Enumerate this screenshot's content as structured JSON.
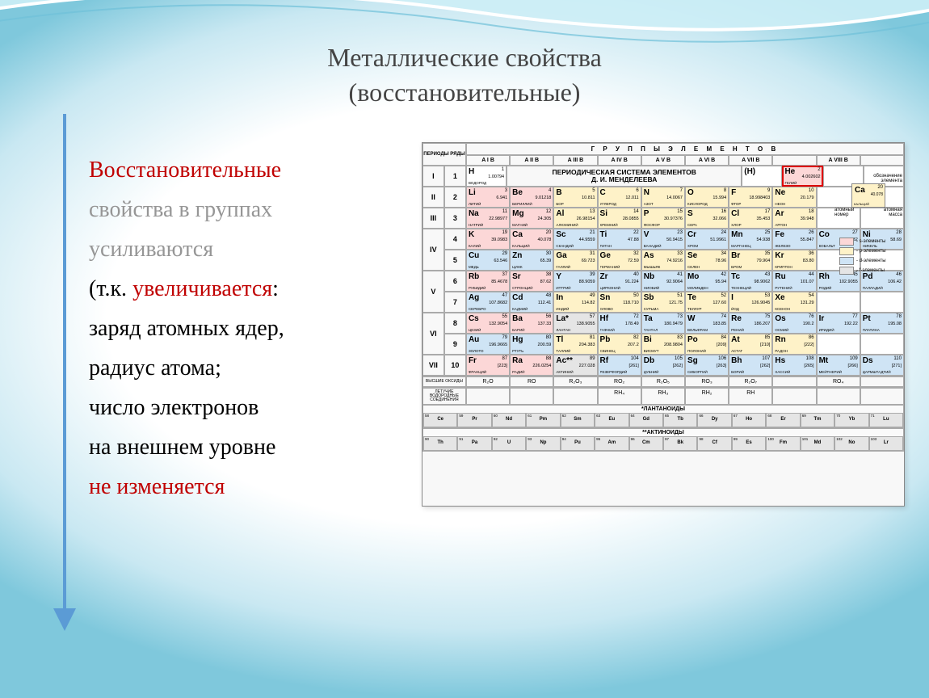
{
  "title": {
    "line1": "Металлические свойства",
    "line2": "(восстановительные)"
  },
  "paragraph": {
    "p1": "Восстановительные",
    "p2_gray": " свойства в группах",
    "p3_gray": " усиливаются",
    "p4_black": "(т.к. ",
    "p4_red": "увеличивается",
    "p4_black2": ":",
    "p5": "заряд атомных ядер,",
    "p6": "радиус атома;",
    "p7": "число электронов",
    "p8": "на внешнем уровне",
    "p9_red": "не изменяется"
  },
  "arrow_color": "#5b9bd5",
  "colors": {
    "s": "#fcd7d7",
    "p": "#fef2c8",
    "d": "#cfe4f5",
    "f": "#e5e5e5",
    "title_text": "#444444",
    "body_text": "#000000",
    "red": "#c00000",
    "gray": "#969696",
    "border": "#aaaaaa"
  },
  "periodic_table": {
    "header_groups": "Г Р У П П Ы   Э Л Е М Е Н Т О В",
    "corner1": "ПЕРИОДЫ",
    "corner2": "РЯДЫ",
    "group_labels": [
      "A I B",
      "A II B",
      "A III B",
      "A IV B",
      "A V B",
      "A VI B",
      "A VII B",
      "",
      "A VIII B",
      ""
    ],
    "inner_title1": "ПЕРИОДИЧЕСКАЯ СИСТЕМА ЭЛЕМЕНТОВ",
    "inner_title2": "Д. И. МЕНДЕЛЕЕВА",
    "periods": [
      "I",
      "II",
      "III",
      "IV",
      "IV",
      "V",
      "V",
      "VI",
      "VI",
      "VII"
    ],
    "row_nums": [
      "1",
      "2",
      "3",
      "4",
      "5",
      "6",
      "7",
      "8",
      "9",
      "10"
    ],
    "period_heights": [
      26,
      26,
      26,
      26,
      26,
      26,
      26,
      26,
      26,
      26
    ],
    "rows": [
      [
        {
          "s": "H",
          "n": "1",
          "m": "1.00794",
          "nm": "ВОДОРОД",
          "c": "c-w"
        },
        "TITLE",
        "TITLE",
        "TITLE",
        "TITLE",
        "TITLE",
        {
          "s": "(H)",
          "n": "",
          "m": "",
          "nm": "",
          "c": "c-w"
        },
        {
          "s": "He",
          "n": "2",
          "m": "4.002602",
          "nm": "ГЕЛИЙ",
          "c": "c-s",
          "hl": true
        },
        "CALLOUT",
        "CALLOUT"
      ],
      [
        {
          "s": "Li",
          "n": "3",
          "m": "6.941",
          "nm": "ЛИТИЙ",
          "c": "c-s"
        },
        {
          "s": "Be",
          "n": "4",
          "m": "9.01218",
          "nm": "БЕРИЛЛИЙ",
          "c": "c-s"
        },
        {
          "s": "B",
          "n": "5",
          "m": "10.811",
          "nm": "БОР",
          "c": "c-p"
        },
        {
          "s": "C",
          "n": "6",
          "m": "12.011",
          "nm": "УГЛЕРОД",
          "c": "c-p"
        },
        {
          "s": "N",
          "n": "7",
          "m": "14.0067",
          "nm": "АЗОТ",
          "c": "c-p"
        },
        {
          "s": "O",
          "n": "8",
          "m": "15.994",
          "nm": "КИСЛОРОД",
          "c": "c-p"
        },
        {
          "s": "F",
          "n": "9",
          "m": "18.998403",
          "nm": "ФТОР",
          "c": "c-p"
        },
        {
          "s": "Ne",
          "n": "10",
          "m": "20.179",
          "nm": "НЕОН",
          "c": "c-p"
        },
        "CALLOUT",
        "CALLOUT"
      ],
      [
        {
          "s": "Na",
          "n": "11",
          "m": "22.98977",
          "nm": "НАТРИЙ",
          "c": "c-s"
        },
        {
          "s": "Mg",
          "n": "12",
          "m": "24.305",
          "nm": "МАГНИЙ",
          "c": "c-s"
        },
        {
          "s": "Al",
          "n": "13",
          "m": "26.98154",
          "nm": "АЛЮМИНИЙ",
          "c": "c-p"
        },
        {
          "s": "Si",
          "n": "14",
          "m": "28.0855",
          "nm": "КРЕМНИЙ",
          "c": "c-p"
        },
        {
          "s": "P",
          "n": "15",
          "m": "30.97376",
          "nm": "ФОСФОР",
          "c": "c-p"
        },
        {
          "s": "S",
          "n": "16",
          "m": "32.066",
          "nm": "СЕРА",
          "c": "c-p"
        },
        {
          "s": "Cl",
          "n": "17",
          "m": "35.453",
          "nm": "ХЛОР",
          "c": "c-p"
        },
        {
          "s": "Ar",
          "n": "18",
          "m": "39.948",
          "nm": "АРГОН",
          "c": "c-p"
        },
        "CALLOUT",
        "CALLOUT"
      ],
      [
        {
          "s": "K",
          "n": "19",
          "m": "39.0983",
          "nm": "КАЛИЙ",
          "c": "c-s"
        },
        {
          "s": "Ca",
          "n": "20",
          "m": "40.078",
          "nm": "КАЛЬЦИЙ",
          "c": "c-s"
        },
        {
          "s": "Sc",
          "n": "21",
          "m": "44.9559",
          "nm": "СКАНДИЙ",
          "c": "c-d"
        },
        {
          "s": "Ti",
          "n": "22",
          "m": "47.88",
          "nm": "ТИТАН",
          "c": "c-d"
        },
        {
          "s": "V",
          "n": "23",
          "m": "50.9415",
          "nm": "ВАНАДИЙ",
          "c": "c-d"
        },
        {
          "s": "Cr",
          "n": "24",
          "m": "51.9961",
          "nm": "ХРОМ",
          "c": "c-d"
        },
        {
          "s": "Mn",
          "n": "25",
          "m": "54.938",
          "nm": "МАРГАНЕЦ",
          "c": "c-d"
        },
        {
          "s": "Fe",
          "n": "26",
          "m": "55.847",
          "nm": "ЖЕЛЕЗО",
          "c": "c-d"
        },
        {
          "s": "Co",
          "n": "27",
          "m": "58.9332",
          "nm": "КОБАЛЬТ",
          "c": "c-d"
        },
        {
          "s": "Ni",
          "n": "28",
          "m": "58.69",
          "nm": "НИКЕЛЬ",
          "c": "c-d"
        }
      ],
      [
        {
          "s": "Cu",
          "n": "29",
          "m": "63.546",
          "nm": "МЕДЬ",
          "c": "c-d"
        },
        {
          "s": "Zn",
          "n": "30",
          "m": "65.39",
          "nm": "ЦИНК",
          "c": "c-d"
        },
        {
          "s": "Ga",
          "n": "31",
          "m": "69.723",
          "nm": "ГАЛЛИЙ",
          "c": "c-p"
        },
        {
          "s": "Ge",
          "n": "32",
          "m": "72.59",
          "nm": "ГЕРМАНИЙ",
          "c": "c-p"
        },
        {
          "s": "As",
          "n": "33",
          "m": "74.9216",
          "nm": "МЫШЬЯК",
          "c": "c-p"
        },
        {
          "s": "Se",
          "n": "34",
          "m": "78.96",
          "nm": "СЕЛЕН",
          "c": "c-p"
        },
        {
          "s": "Br",
          "n": "35",
          "m": "79.904",
          "nm": "БРОМ",
          "c": "c-p"
        },
        {
          "s": "Kr",
          "n": "36",
          "m": "83.80",
          "nm": "КРИПТОН",
          "c": "c-p"
        },
        "LEGEND",
        "LEGEND"
      ],
      [
        {
          "s": "Rb",
          "n": "37",
          "m": "85.4678",
          "nm": "РУБИДИЙ",
          "c": "c-s"
        },
        {
          "s": "Sr",
          "n": "38",
          "m": "87.62",
          "nm": "СТРОНЦИЙ",
          "c": "c-s"
        },
        {
          "s": "Y",
          "n": "39",
          "m": "88.9059",
          "nm": "ИТТРИЙ",
          "c": "c-d"
        },
        {
          "s": "Zr",
          "n": "40",
          "m": "91.224",
          "nm": "ЦИРКОНИЙ",
          "c": "c-d"
        },
        {
          "s": "Nb",
          "n": "41",
          "m": "92.9064",
          "nm": "НИОБИЙ",
          "c": "c-d"
        },
        {
          "s": "Mo",
          "n": "42",
          "m": "95.94",
          "nm": "МОЛИБДЕН",
          "c": "c-d"
        },
        {
          "s": "Tc",
          "n": "43",
          "m": "98.9062",
          "nm": "ТЕХНЕЦИЙ",
          "c": "c-d"
        },
        {
          "s": "Ru",
          "n": "44",
          "m": "101.07",
          "nm": "РУТЕНИЙ",
          "c": "c-d"
        },
        {
          "s": "Rh",
          "n": "45",
          "m": "102.9055",
          "nm": "РОДИЙ",
          "c": "c-d"
        },
        {
          "s": "Pd",
          "n": "46",
          "m": "106.42",
          "nm": "ПАЛЛАДИЙ",
          "c": "c-d"
        }
      ],
      [
        {
          "s": "Ag",
          "n": "47",
          "m": "107.8682",
          "nm": "СЕРЕБРО",
          "c": "c-d"
        },
        {
          "s": "Cd",
          "n": "48",
          "m": "112.41",
          "nm": "КАДМИЙ",
          "c": "c-d"
        },
        {
          "s": "In",
          "n": "49",
          "m": "114.82",
          "nm": "ИНДИЙ",
          "c": "c-p"
        },
        {
          "s": "Sn",
          "n": "50",
          "m": "118.710",
          "nm": "ОЛОВО",
          "c": "c-p"
        },
        {
          "s": "Sb",
          "n": "51",
          "m": "121.75",
          "nm": "СУРЬМА",
          "c": "c-p"
        },
        {
          "s": "Te",
          "n": "52",
          "m": "127.60",
          "nm": "ТЕЛЛУР",
          "c": "c-p"
        },
        {
          "s": "I",
          "n": "53",
          "m": "126.9045",
          "nm": "ЙОД",
          "c": "c-p"
        },
        {
          "s": "Xe",
          "n": "54",
          "m": "131.29",
          "nm": "КСЕНОН",
          "c": "c-p"
        },
        "LEGEND",
        "LEGEND"
      ],
      [
        {
          "s": "Cs",
          "n": "55",
          "m": "132.9054",
          "nm": "ЦЕЗИЙ",
          "c": "c-s"
        },
        {
          "s": "Ba",
          "n": "56",
          "m": "137.33",
          "nm": "БАРИЙ",
          "c": "c-s"
        },
        {
          "s": "La*",
          "n": "57",
          "m": "138.9055",
          "nm": "ЛАНТАН",
          "c": "c-f"
        },
        {
          "s": "Hf",
          "n": "72",
          "m": "178.49",
          "nm": "ГАФНИЙ",
          "c": "c-d"
        },
        {
          "s": "Ta",
          "n": "73",
          "m": "180.9479",
          "nm": "ТАНТАЛ",
          "c": "c-d"
        },
        {
          "s": "W",
          "n": "74",
          "m": "183.85",
          "nm": "ВОЛЬФРАМ",
          "c": "c-d"
        },
        {
          "s": "Re",
          "n": "75",
          "m": "186.207",
          "nm": "РЕНИЙ",
          "c": "c-d"
        },
        {
          "s": "Os",
          "n": "76",
          "m": "190.2",
          "nm": "ОСМИЙ",
          "c": "c-d"
        },
        {
          "s": "Ir",
          "n": "77",
          "m": "192.22",
          "nm": "ИРИДИЙ",
          "c": "c-d"
        },
        {
          "s": "Pt",
          "n": "78",
          "m": "195.08",
          "nm": "ПЛАТИНА",
          "c": "c-d"
        }
      ],
      [
        {
          "s": "Au",
          "n": "79",
          "m": "196.9665",
          "nm": "ЗОЛОТО",
          "c": "c-d"
        },
        {
          "s": "Hg",
          "n": "80",
          "m": "200.59",
          "nm": "РТУТЬ",
          "c": "c-d"
        },
        {
          "s": "Tl",
          "n": "81",
          "m": "204.383",
          "nm": "ТАЛЛИЙ",
          "c": "c-p"
        },
        {
          "s": "Pb",
          "n": "82",
          "m": "207.2",
          "nm": "СВИНЕЦ",
          "c": "c-p"
        },
        {
          "s": "Bi",
          "n": "83",
          "m": "208.9804",
          "nm": "ВИСМУТ",
          "c": "c-p"
        },
        {
          "s": "Po",
          "n": "84",
          "m": "[209]",
          "nm": "ПОЛОНИЙ",
          "c": "c-p"
        },
        {
          "s": "At",
          "n": "85",
          "m": "[210]",
          "nm": "АСТАТ",
          "c": "c-p"
        },
        {
          "s": "Rn",
          "n": "86",
          "m": "[222]",
          "nm": "РАДОН",
          "c": "c-p"
        },
        "",
        ""
      ],
      [
        {
          "s": "Fr",
          "n": "87",
          "m": "[223]",
          "nm": "ФРАНЦИЙ",
          "c": "c-s"
        },
        {
          "s": "Ra",
          "n": "88",
          "m": "226.0254",
          "nm": "РАДИЙ",
          "c": "c-s"
        },
        {
          "s": "Ac**",
          "n": "89",
          "m": "227.028",
          "nm": "АКТИНИЙ",
          "c": "c-f"
        },
        {
          "s": "Rf",
          "n": "104",
          "m": "[261]",
          "nm": "РЕЗЕРФОРДИЙ",
          "c": "c-d"
        },
        {
          "s": "Db",
          "n": "105",
          "m": "[262]",
          "nm": "ДУБНИЙ",
          "c": "c-d"
        },
        {
          "s": "Sg",
          "n": "106",
          "m": "[263]",
          "nm": "СИБОРГИЙ",
          "c": "c-d"
        },
        {
          "s": "Bh",
          "n": "107",
          "m": "[262]",
          "nm": "БОРИЙ",
          "c": "c-d"
        },
        {
          "s": "Hs",
          "n": "108",
          "m": "[265]",
          "nm": "ХАССИЙ",
          "c": "c-d"
        },
        {
          "s": "Mt",
          "n": "109",
          "m": "[266]",
          "nm": "МЕЙТНЕРИЙ",
          "c": "c-d"
        },
        {
          "s": "Ds",
          "n": "110",
          "m": "[271]",
          "nm": "ДАРМШТАДТИЙ",
          "c": "c-d"
        }
      ]
    ],
    "callout": {
      "label1": "обозначение",
      "label2": "элемента",
      "label3": "атомный",
      "label4": "номер",
      "label5": "атомная",
      "label6": "масса",
      "sym": "Ca",
      "num": "20",
      "mass": "40.078",
      "name": "КАЛЬЦИЙ"
    },
    "legend": {
      "items": [
        {
          "c": "c-s",
          "t": "- s-элементы"
        },
        {
          "c": "c-p",
          "t": "- p-элементы"
        },
        {
          "c": "c-d",
          "t": "- d-элементы"
        },
        {
          "c": "c-f",
          "t": "- f-элементы"
        }
      ]
    },
    "oxides_label": "ВЫСШИЕ ОКСИДЫ",
    "oxides": [
      "R₂O",
      "RO",
      "R₂O₃",
      "RO₂",
      "R₂O₅",
      "RO₃",
      "R₂O₇",
      "",
      "RO₄",
      ""
    ],
    "hydrides_label": "ЛЕТУЧИЕ ВОДОРОДНЫЕ СОЕДИНЕНИЯ",
    "hydrides": [
      "",
      "",
      "",
      "RH₄",
      "RH₃",
      "RH₂",
      "RH",
      "",
      "",
      ""
    ],
    "lanthanides_title": "*ЛАНТАНОИДЫ",
    "lanthanides": [
      {
        "s": "Ce",
        "n": "58"
      },
      {
        "s": "Pr",
        "n": "59"
      },
      {
        "s": "Nd",
        "n": "60"
      },
      {
        "s": "Pm",
        "n": "61"
      },
      {
        "s": "Sm",
        "n": "62"
      },
      {
        "s": "Eu",
        "n": "63"
      },
      {
        "s": "Gd",
        "n": "64"
      },
      {
        "s": "Tb",
        "n": "65"
      },
      {
        "s": "Dy",
        "n": "66"
      },
      {
        "s": "Ho",
        "n": "67"
      },
      {
        "s": "Er",
        "n": "68"
      },
      {
        "s": "Tm",
        "n": "69"
      },
      {
        "s": "Yb",
        "n": "70"
      },
      {
        "s": "Lu",
        "n": "71"
      }
    ],
    "actinides_title": "**АКТИНОИДЫ",
    "actinides": [
      {
        "s": "Th",
        "n": "90"
      },
      {
        "s": "Pa",
        "n": "91"
      },
      {
        "s": "U",
        "n": "92"
      },
      {
        "s": "Np",
        "n": "93"
      },
      {
        "s": "Pu",
        "n": "94"
      },
      {
        "s": "Am",
        "n": "95"
      },
      {
        "s": "Cm",
        "n": "96"
      },
      {
        "s": "Bk",
        "n": "97"
      },
      {
        "s": "Cf",
        "n": "98"
      },
      {
        "s": "Es",
        "n": "99"
      },
      {
        "s": "Fm",
        "n": "100"
      },
      {
        "s": "Md",
        "n": "101"
      },
      {
        "s": "No",
        "n": "102"
      },
      {
        "s": "Lr",
        "n": "103"
      }
    ]
  }
}
